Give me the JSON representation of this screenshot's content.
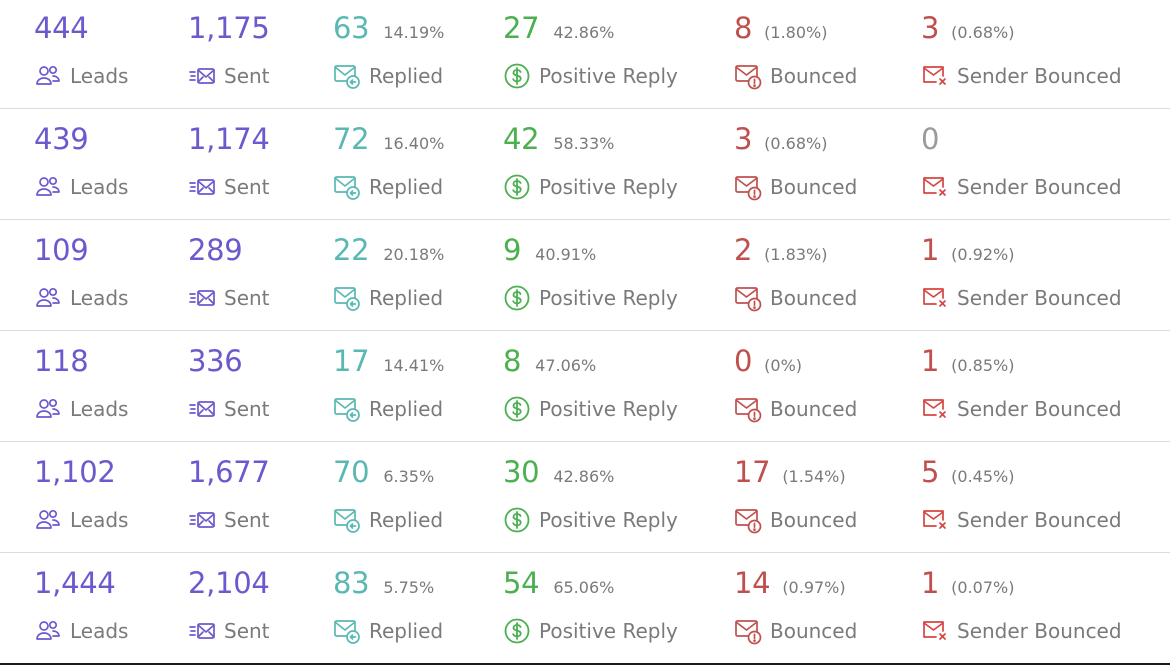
{
  "colors": {
    "leads": "#6a5acd",
    "sent": "#6a5acd",
    "replied": "#5ab8b3",
    "positive": "#4caf50",
    "bounced": "#c0504d",
    "sender_bounced": "#d64541",
    "zero": "#9a9a9a"
  },
  "icons": {
    "leads": "users-icon",
    "sent": "send-mail-icon",
    "replied": "reply-mail-icon",
    "positive": "dollar-circle-icon",
    "bounced": "mail-alert-icon",
    "sender_bounced": "mail-x-icon"
  },
  "labels": {
    "leads": "Leads",
    "sent": "Sent",
    "replied": "Replied",
    "positive": "Positive Reply",
    "bounced": "Bounced",
    "sender_bounced": "Sender Bounced"
  },
  "rows": [
    {
      "leads": "444",
      "sent": "1,175",
      "replied": "63",
      "replied_pct": "14.19%",
      "positive": "27",
      "positive_pct": "42.86%",
      "bounced": "8",
      "bounced_pct": "(1.80%)",
      "sender_bounced": "3",
      "sender_bounced_pct": "(0.68%)"
    },
    {
      "leads": "439",
      "sent": "1,174",
      "replied": "72",
      "replied_pct": "16.40%",
      "positive": "42",
      "positive_pct": "58.33%",
      "bounced": "3",
      "bounced_pct": "(0.68%)",
      "sender_bounced": "0",
      "sender_bounced_pct": ""
    },
    {
      "leads": "109",
      "sent": "289",
      "replied": "22",
      "replied_pct": "20.18%",
      "positive": "9",
      "positive_pct": "40.91%",
      "bounced": "2",
      "bounced_pct": "(1.83%)",
      "sender_bounced": "1",
      "sender_bounced_pct": "(0.92%)"
    },
    {
      "leads": "118",
      "sent": "336",
      "replied": "17",
      "replied_pct": "14.41%",
      "positive": "8",
      "positive_pct": "47.06%",
      "bounced": "0",
      "bounced_pct": "(0%)",
      "sender_bounced": "1",
      "sender_bounced_pct": "(0.85%)"
    },
    {
      "leads": "1,102",
      "sent": "1,677",
      "replied": "70",
      "replied_pct": "6.35%",
      "positive": "30",
      "positive_pct": "42.86%",
      "bounced": "17",
      "bounced_pct": "(1.54%)",
      "sender_bounced": "5",
      "sender_bounced_pct": "(0.45%)"
    },
    {
      "leads": "1,444",
      "sent": "2,104",
      "replied": "83",
      "replied_pct": "5.75%",
      "positive": "54",
      "positive_pct": "65.06%",
      "bounced": "14",
      "bounced_pct": "(0.97%)",
      "sender_bounced": "1",
      "sender_bounced_pct": "(0.07%)"
    }
  ]
}
